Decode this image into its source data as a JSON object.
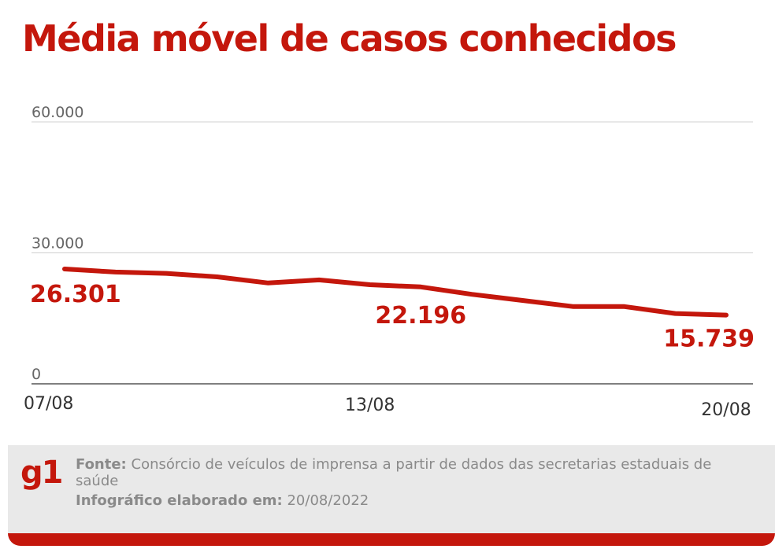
{
  "header": {
    "title": "Média móvel de casos conhecidos"
  },
  "colors": {
    "accent": "#c4170c",
    "grid": "#d0d0d0",
    "axis": "#555555",
    "footer_bg": "#e9e9e9",
    "footer_text": "#8a8a8a"
  },
  "chart_data": {
    "type": "line",
    "title": "Média móvel de casos conhecidos",
    "x": [
      "07/08",
      "08/08",
      "09/08",
      "10/08",
      "11/08",
      "12/08",
      "13/08",
      "14/08",
      "15/08",
      "16/08",
      "17/08",
      "18/08",
      "19/08",
      "20/08"
    ],
    "x_tick_labels": [
      "07/08",
      "13/08",
      "20/08"
    ],
    "y_ticks": [
      0,
      30000,
      60000
    ],
    "y_tick_labels": [
      "0",
      "30.000",
      "60.000"
    ],
    "ylim": [
      0,
      60000
    ],
    "series": [
      {
        "values": [
          26301,
          25600,
          25300,
          24500,
          23100,
          23800,
          22700,
          22196,
          20500,
          19100,
          17700,
          17700,
          16100,
          15739
        ]
      }
    ],
    "annotations": [
      {
        "index": 0,
        "text": "26.301"
      },
      {
        "index": 7,
        "text": "22.196"
      },
      {
        "index": 13,
        "text": "15.739"
      }
    ],
    "grid": true,
    "legend": "none"
  },
  "footer": {
    "logo": "g1",
    "source_label": "Fonte:",
    "source_text": "Consórcio de veículos de imprensa a partir de dados das secretarias estaduais de saúde",
    "date_label": "Infográfico elaborado em:",
    "date_value": "20/08/2022"
  }
}
